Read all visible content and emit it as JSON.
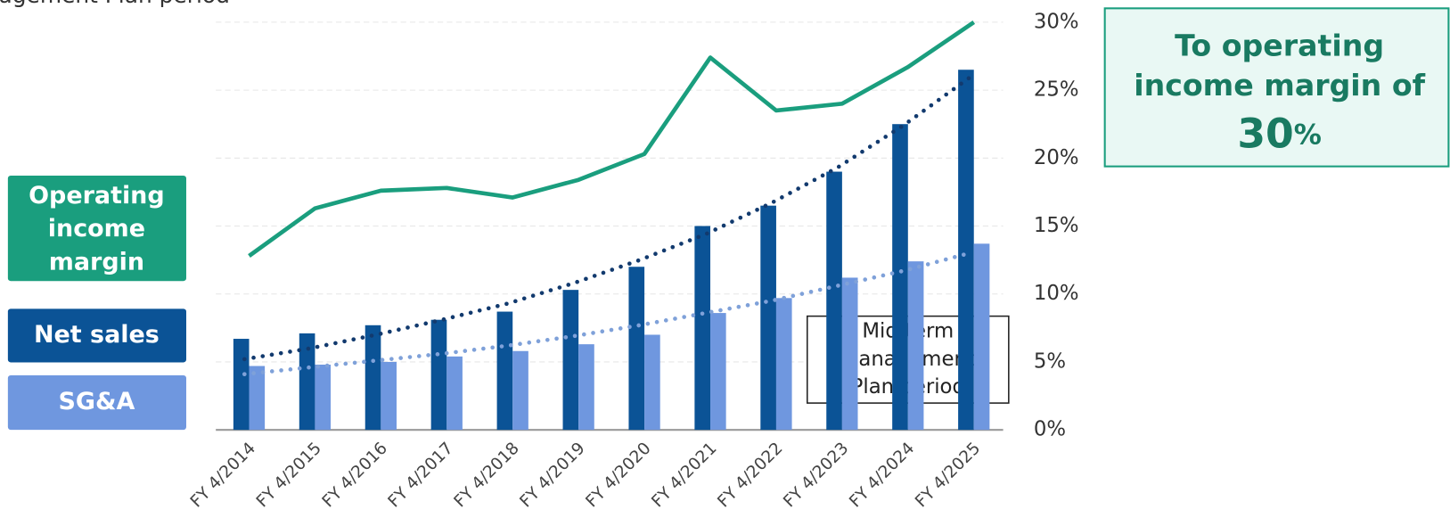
{
  "chart_data": {
    "type": "bar",
    "header_fragment": "agement Plan period",
    "categories": [
      "FY 4/2014",
      "FY 4/2015",
      "FY 4/2016",
      "FY 4/2017",
      "FY 4/2018",
      "FY 4/2019",
      "FY 4/2020",
      "FY 4/2021",
      "FY 4/2022",
      "FY 4/2023",
      "FY 4/2024",
      "FY 4/2025"
    ],
    "series": [
      {
        "name": "Operating income margin",
        "type": "line",
        "color": "#1a9e7e",
        "values": [
          12.8,
          16.3,
          17.6,
          17.8,
          17.1,
          18.4,
          20.3,
          27.4,
          23.5,
          24.0,
          26.7,
          30.0
        ]
      },
      {
        "name": "Net sales",
        "type": "bar",
        "color": "#0b5396",
        "values": [
          6.7,
          7.1,
          7.7,
          8.1,
          8.7,
          10.3,
          12.0,
          15.0,
          16.5,
          19.0,
          22.5,
          26.5
        ]
      },
      {
        "name": "SG&A",
        "type": "bar",
        "color": "#6f97df",
        "values": [
          4.7,
          4.8,
          5.0,
          5.4,
          5.8,
          6.3,
          7.0,
          8.6,
          9.7,
          11.2,
          12.4,
          13.7
        ]
      }
    ],
    "trendlines": [
      {
        "color": "#123a6e",
        "values": [
          5.2,
          6.0,
          7.0,
          8.1,
          9.3,
          10.8,
          12.5,
          14.4,
          16.7,
          19.3,
          22.4,
          25.9
        ]
      },
      {
        "color": "#7fa1d9",
        "values": [
          4.1,
          4.6,
          5.1,
          5.6,
          6.2,
          6.9,
          7.7,
          8.6,
          9.5,
          10.6,
          11.7,
          13.0
        ]
      }
    ],
    "ylim": [
      0,
      30
    ],
    "yticks": [
      {
        "value": 0,
        "label": "0%"
      },
      {
        "value": 5,
        "label": "5%"
      },
      {
        "value": 10,
        "label": "10%"
      },
      {
        "value": 15,
        "label": "15%"
      },
      {
        "value": 20,
        "label": "20%"
      },
      {
        "value": 25,
        "label": "25%"
      },
      {
        "value": 30,
        "label": "30%"
      }
    ],
    "grid": true,
    "annotation": [
      "Mid-term",
      "Management",
      "Plan period"
    ],
    "callout": {
      "lines": [
        "To operating",
        "income margin of"
      ],
      "big": "30",
      "unit": "%"
    }
  }
}
